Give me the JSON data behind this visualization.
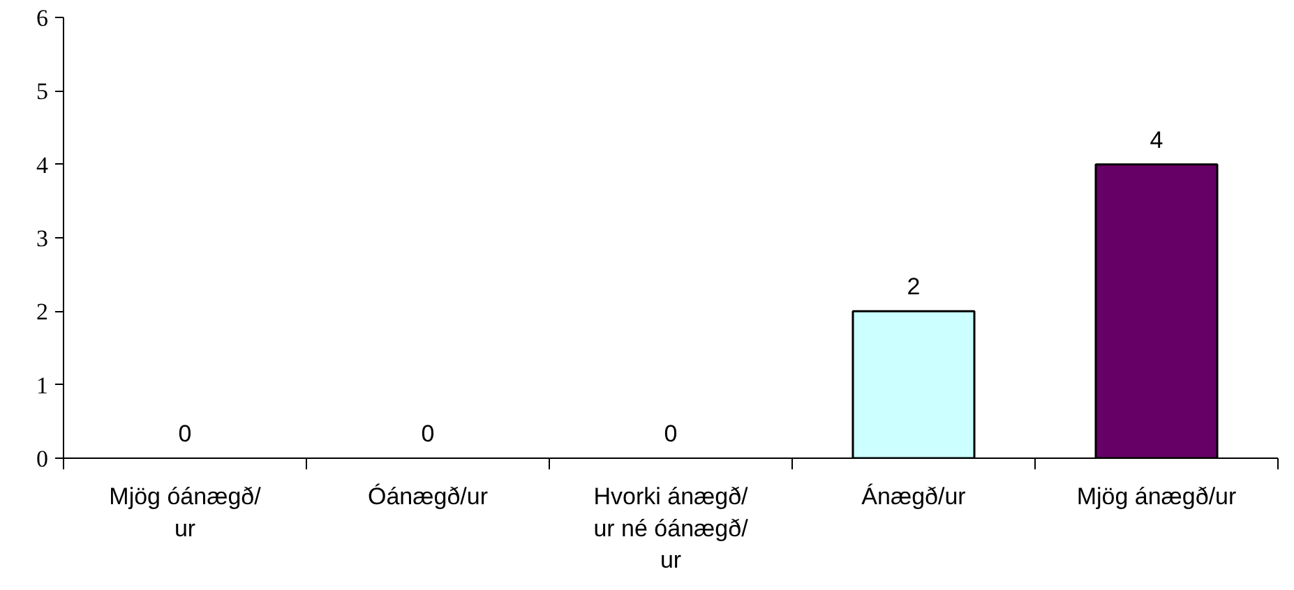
{
  "chart_data": {
    "type": "bar",
    "categories": [
      "Mjög óánægð/ur",
      "Óánægð/ur",
      "Hvorki ánægð/ur né óánægð/ur",
      "Ánægð/ur",
      "Mjög ánægð/ur"
    ],
    "values": [
      0,
      0,
      0,
      2,
      4
    ],
    "colors": [
      null,
      null,
      null,
      "#ccffff",
      "#660066"
    ],
    "ylim": [
      0,
      6
    ],
    "yticks": [
      0,
      1,
      2,
      3,
      4,
      5,
      6
    ],
    "data_labels": true,
    "grid": false
  }
}
